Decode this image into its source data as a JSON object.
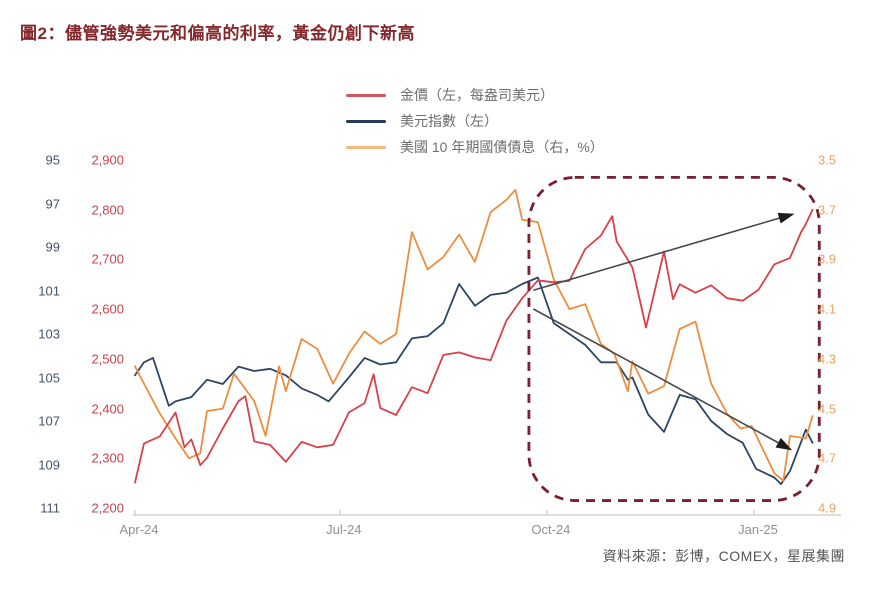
{
  "title": "圖2：儘管強勢美元和偏高的利率，黃金仍創下新高",
  "source": "資料來源：彭博，COMEX，星展集團",
  "colors": {
    "title": "#84282c",
    "gold_line": "#d8414a",
    "dxy_line": "#2d4565",
    "yield_line": "#ec8e3e",
    "gold_axis_text": "#c8434b",
    "dxy_axis_text": "#46536b",
    "yield_axis_text": "#e9a361",
    "x_axis_text": "#8f9093",
    "axis_line": "#cbcbcb",
    "highlight_box": "#7a1f2d",
    "arrow": "#45474b",
    "legend_text": "#6e6e6e"
  },
  "legend": [
    {
      "label": "金價（左，每盎司美元）",
      "color": "#d4565c",
      "series": "gold"
    },
    {
      "label": "美元指數（左）",
      "color": "#263b5c",
      "series": "dxy"
    },
    {
      "label": "美國 10 年期國債債息（右，%）",
      "color": "#f2ba80",
      "series": "yield"
    }
  ],
  "chart_data": {
    "type": "line",
    "title": "圖2：儘管強勢美元和偏高的利率，黃金仍創下新高",
    "grid": false,
    "legend_position": "top-center",
    "x_axis": {
      "tick_labels": [
        "Apr-24",
        "Jul-24",
        "Oct-24",
        "Jan-25"
      ],
      "tick_dates": [
        "2024-04-01",
        "2024-07-01",
        "2024-10-01",
        "2025-01-01"
      ],
      "range_dates": [
        "2024-04-01",
        "2025-01-27"
      ]
    },
    "axes": {
      "gold": {
        "side": "left-inner",
        "unit": "USD/oz",
        "inverted": false,
        "tick_values": [
          2900,
          2800,
          2700,
          2600,
          2500,
          2400,
          2300,
          2200
        ],
        "tick_labels": [
          "2,900",
          "2,800",
          "2,700",
          "2,600",
          "2,500",
          "2,400",
          "2,300",
          "2,200"
        ],
        "range": [
          2200,
          2900
        ]
      },
      "dxy": {
        "side": "left-outer",
        "unit": "index",
        "inverted": true,
        "tick_values": [
          95,
          97,
          99,
          101,
          103,
          105,
          107,
          109,
          111
        ],
        "tick_labels": [
          "95",
          "97",
          "99",
          "101",
          "103",
          "105",
          "107",
          "109",
          "111"
        ],
        "range": [
          95,
          111
        ]
      },
      "yield": {
        "side": "right",
        "unit": "%",
        "inverted": true,
        "tick_values": [
          3.5,
          3.7,
          3.9,
          4.1,
          4.3,
          4.5,
          4.7,
          4.9
        ],
        "tick_labels": [
          "3.5",
          "3.7",
          "3.9",
          "4.1",
          "4.3",
          "4.5",
          "4.7",
          "4.9"
        ],
        "range": [
          3.5,
          4.9
        ]
      }
    },
    "series": [
      {
        "name": "金價（左，每盎司美元）",
        "axis": "gold",
        "color": "#d8414a",
        "z": 3,
        "data": [
          [
            "2024-04-01",
            2251
          ],
          [
            "2024-04-05",
            2330
          ],
          [
            "2024-04-12",
            2344
          ],
          [
            "2024-04-19",
            2392
          ],
          [
            "2024-04-23",
            2322
          ],
          [
            "2024-04-26",
            2338
          ],
          [
            "2024-04-30",
            2286
          ],
          [
            "2024-05-03",
            2301
          ],
          [
            "2024-05-10",
            2360
          ],
          [
            "2024-05-17",
            2415
          ],
          [
            "2024-05-20",
            2425
          ],
          [
            "2024-05-24",
            2334
          ],
          [
            "2024-05-31",
            2327
          ],
          [
            "2024-06-07",
            2293
          ],
          [
            "2024-06-14",
            2333
          ],
          [
            "2024-06-21",
            2322
          ],
          [
            "2024-06-28",
            2327
          ],
          [
            "2024-07-05",
            2392
          ],
          [
            "2024-07-12",
            2411
          ],
          [
            "2024-07-16",
            2469
          ],
          [
            "2024-07-19",
            2401
          ],
          [
            "2024-07-26",
            2387
          ],
          [
            "2024-08-02",
            2443
          ],
          [
            "2024-08-09",
            2431
          ],
          [
            "2024-08-16",
            2508
          ],
          [
            "2024-08-23",
            2513
          ],
          [
            "2024-08-30",
            2503
          ],
          [
            "2024-09-06",
            2497
          ],
          [
            "2024-09-13",
            2577
          ],
          [
            "2024-09-20",
            2622
          ],
          [
            "2024-09-27",
            2658
          ],
          [
            "2024-10-04",
            2654
          ],
          [
            "2024-10-11",
            2657
          ],
          [
            "2024-10-18",
            2721
          ],
          [
            "2024-10-25",
            2748
          ],
          [
            "2024-10-30",
            2787
          ],
          [
            "2024-11-01",
            2736
          ],
          [
            "2024-11-08",
            2684
          ],
          [
            "2024-11-14",
            2563
          ],
          [
            "2024-11-22",
            2716
          ],
          [
            "2024-11-26",
            2620
          ],
          [
            "2024-11-29",
            2650
          ],
          [
            "2024-12-06",
            2633
          ],
          [
            "2024-12-13",
            2648
          ],
          [
            "2024-12-20",
            2622
          ],
          [
            "2024-12-27",
            2617
          ],
          [
            "2025-01-03",
            2639
          ],
          [
            "2025-01-10",
            2690
          ],
          [
            "2025-01-17",
            2703
          ],
          [
            "2025-01-22",
            2756
          ],
          [
            "2025-01-24",
            2771
          ],
          [
            "2025-01-27",
            2800
          ]
        ]
      },
      {
        "name": "美元指數（左）",
        "axis": "dxy",
        "color": "#2d4565",
        "z": 1,
        "data": [
          [
            "2024-04-01",
            104.9
          ],
          [
            "2024-04-05",
            104.3
          ],
          [
            "2024-04-09",
            104.1
          ],
          [
            "2024-04-16",
            106.3
          ],
          [
            "2024-04-19",
            106.1
          ],
          [
            "2024-04-26",
            105.9
          ],
          [
            "2024-05-03",
            105.1
          ],
          [
            "2024-05-10",
            105.3
          ],
          [
            "2024-05-17",
            104.5
          ],
          [
            "2024-05-24",
            104.7
          ],
          [
            "2024-05-31",
            104.6
          ],
          [
            "2024-06-07",
            104.9
          ],
          [
            "2024-06-14",
            105.5
          ],
          [
            "2024-06-21",
            105.8
          ],
          [
            "2024-06-26",
            106.1
          ],
          [
            "2024-07-05",
            105.0
          ],
          [
            "2024-07-12",
            104.1
          ],
          [
            "2024-07-19",
            104.4
          ],
          [
            "2024-07-26",
            104.3
          ],
          [
            "2024-08-02",
            103.2
          ],
          [
            "2024-08-09",
            103.1
          ],
          [
            "2024-08-16",
            102.5
          ],
          [
            "2024-08-23",
            100.7
          ],
          [
            "2024-08-30",
            101.7
          ],
          [
            "2024-09-06",
            101.2
          ],
          [
            "2024-09-13",
            101.1
          ],
          [
            "2024-09-20",
            100.7
          ],
          [
            "2024-09-27",
            100.4
          ],
          [
            "2024-10-04",
            102.5
          ],
          [
            "2024-10-11",
            103.0
          ],
          [
            "2024-10-18",
            103.5
          ],
          [
            "2024-10-25",
            104.3
          ],
          [
            "2024-11-01",
            104.3
          ],
          [
            "2024-11-06",
            105.1
          ],
          [
            "2024-11-08",
            105.0
          ],
          [
            "2024-11-15",
            106.7
          ],
          [
            "2024-11-22",
            107.5
          ],
          [
            "2024-11-29",
            105.8
          ],
          [
            "2024-12-06",
            106.0
          ],
          [
            "2024-12-13",
            107.0
          ],
          [
            "2024-12-20",
            107.6
          ],
          [
            "2024-12-27",
            108.0
          ],
          [
            "2025-01-02",
            109.2
          ],
          [
            "2025-01-10",
            109.6
          ],
          [
            "2025-01-13",
            109.9
          ],
          [
            "2025-01-17",
            109.3
          ],
          [
            "2025-01-24",
            107.4
          ],
          [
            "2025-01-27",
            108.0
          ]
        ]
      },
      {
        "name": "美國 10 年期國債債息（右，%）",
        "axis": "yield",
        "color": "#ec8e3e",
        "z": 2,
        "data": [
          [
            "2024-04-01",
            4.33
          ],
          [
            "2024-04-05",
            4.4
          ],
          [
            "2024-04-12",
            4.52
          ],
          [
            "2024-04-19",
            4.62
          ],
          [
            "2024-04-25",
            4.7
          ],
          [
            "2024-04-30",
            4.68
          ],
          [
            "2024-05-03",
            4.51
          ],
          [
            "2024-05-10",
            4.5
          ],
          [
            "2024-05-15",
            4.36
          ],
          [
            "2024-05-24",
            4.47
          ],
          [
            "2024-05-29",
            4.61
          ],
          [
            "2024-06-04",
            4.33
          ],
          [
            "2024-06-07",
            4.43
          ],
          [
            "2024-06-14",
            4.22
          ],
          [
            "2024-06-21",
            4.26
          ],
          [
            "2024-06-28",
            4.4
          ],
          [
            "2024-07-05",
            4.28
          ],
          [
            "2024-07-12",
            4.19
          ],
          [
            "2024-07-19",
            4.24
          ],
          [
            "2024-07-26",
            4.2
          ],
          [
            "2024-08-02",
            3.79
          ],
          [
            "2024-08-09",
            3.94
          ],
          [
            "2024-08-16",
            3.89
          ],
          [
            "2024-08-23",
            3.8
          ],
          [
            "2024-08-30",
            3.91
          ],
          [
            "2024-09-06",
            3.71
          ],
          [
            "2024-09-13",
            3.66
          ],
          [
            "2024-09-17",
            3.62
          ],
          [
            "2024-09-20",
            3.74
          ],
          [
            "2024-09-27",
            3.75
          ],
          [
            "2024-10-04",
            3.98
          ],
          [
            "2024-10-11",
            4.1
          ],
          [
            "2024-10-18",
            4.08
          ],
          [
            "2024-10-25",
            4.24
          ],
          [
            "2024-10-31",
            4.28
          ],
          [
            "2024-11-06",
            4.43
          ],
          [
            "2024-11-08",
            4.31
          ],
          [
            "2024-11-15",
            4.44
          ],
          [
            "2024-11-22",
            4.41
          ],
          [
            "2024-11-29",
            4.18
          ],
          [
            "2024-12-06",
            4.15
          ],
          [
            "2024-12-13",
            4.4
          ],
          [
            "2024-12-20",
            4.52
          ],
          [
            "2024-12-26",
            4.58
          ],
          [
            "2024-12-31",
            4.57
          ],
          [
            "2025-01-10",
            4.76
          ],
          [
            "2025-01-14",
            4.79
          ],
          [
            "2025-01-17",
            4.61
          ],
          [
            "2025-01-24",
            4.62
          ],
          [
            "2025-01-27",
            4.53
          ]
        ]
      }
    ],
    "annotations": {
      "highlight_box": {
        "from_date": "2024-09-23",
        "to_date": "2025-01-30",
        "gold_top": 2865,
        "gold_bottom": 2215,
        "style": "dashed-rounded",
        "color": "#7a1f2d"
      },
      "arrows": [
        {
          "meaning": "gold-uptrend",
          "axis": "gold",
          "from": [
            "2024-09-25",
            2638
          ],
          "to": [
            "2025-01-19",
            2792
          ]
        },
        {
          "meaning": "dollar-and-yield-uptrend",
          "axis": "dxy",
          "from": [
            "2024-09-25",
            101.85
          ],
          "to": [
            "2025-01-18",
            108.35
          ]
        }
      ]
    }
  }
}
